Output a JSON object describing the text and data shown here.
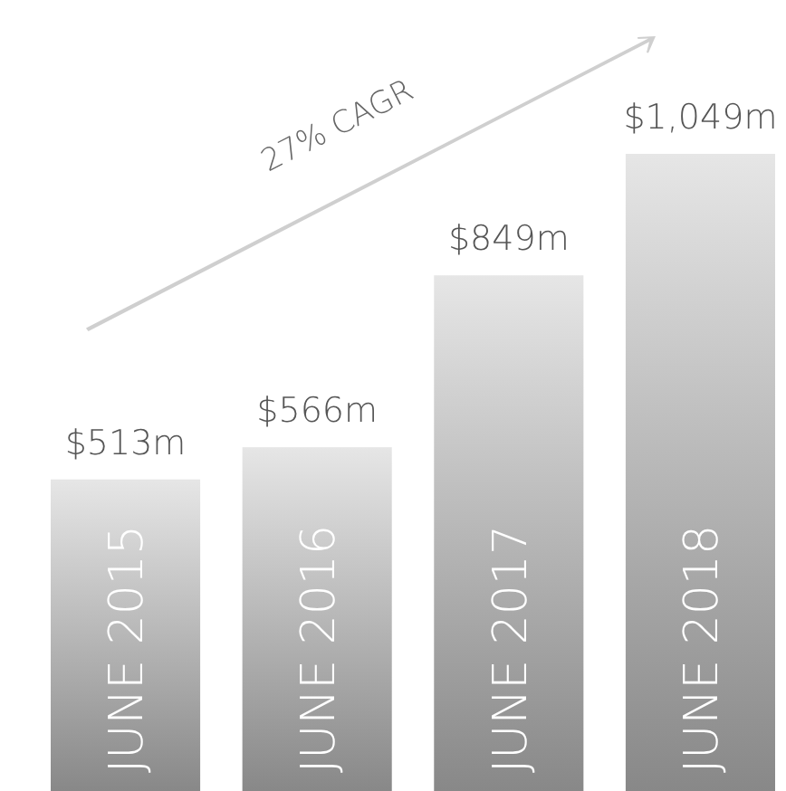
{
  "chart_data": {
    "type": "bar",
    "categories": [
      "JUNE 2015",
      "JUNE 2016",
      "JUNE 2017",
      "JUNE 2018"
    ],
    "values": [
      513,
      566,
      849,
      1049
    ],
    "value_labels": [
      "$513m",
      "$566m",
      "$849m",
      "$1,049m"
    ],
    "color": "#9a9a9a",
    "annotations": [
      "27% CAGR"
    ]
  }
}
